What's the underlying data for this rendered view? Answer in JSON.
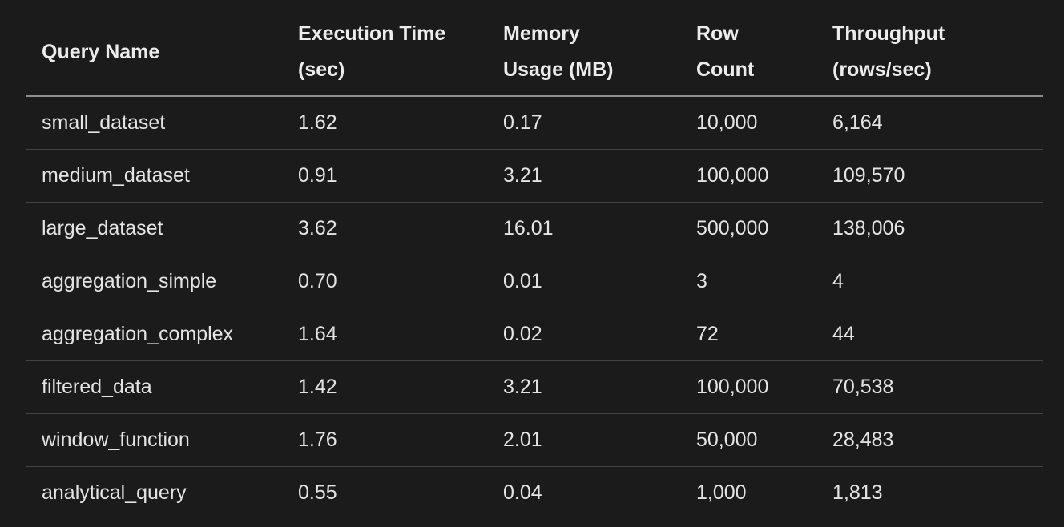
{
  "table": {
    "headers": [
      {
        "line1": "Query Name",
        "line2": ""
      },
      {
        "line1": "Execution Time",
        "line2": "(sec)"
      },
      {
        "line1": "Memory",
        "line2": "Usage (MB)"
      },
      {
        "line1": "Row",
        "line2": "Count"
      },
      {
        "line1": "Throughput",
        "line2": "(rows/sec)"
      }
    ],
    "rows": [
      {
        "query": "small_dataset",
        "time": "1.62",
        "memory": "0.17",
        "rows": "10,000",
        "throughput": "6,164"
      },
      {
        "query": "medium_dataset",
        "time": "0.91",
        "memory": "3.21",
        "rows": "100,000",
        "throughput": "109,570"
      },
      {
        "query": "large_dataset",
        "time": "3.62",
        "memory": "16.01",
        "rows": "500,000",
        "throughput": "138,006"
      },
      {
        "query": "aggregation_simple",
        "time": "0.70",
        "memory": "0.01",
        "rows": "3",
        "throughput": "4"
      },
      {
        "query": "aggregation_complex",
        "time": "1.64",
        "memory": "0.02",
        "rows": "72",
        "throughput": "44"
      },
      {
        "query": "filtered_data",
        "time": "1.42",
        "memory": "3.21",
        "rows": "100,000",
        "throughput": "70,538"
      },
      {
        "query": "window_function",
        "time": "1.76",
        "memory": "2.01",
        "rows": "50,000",
        "throughput": "28,483"
      },
      {
        "query": "analytical_query",
        "time": "0.55",
        "memory": "0.04",
        "rows": "1,000",
        "throughput": "1,813"
      }
    ]
  }
}
